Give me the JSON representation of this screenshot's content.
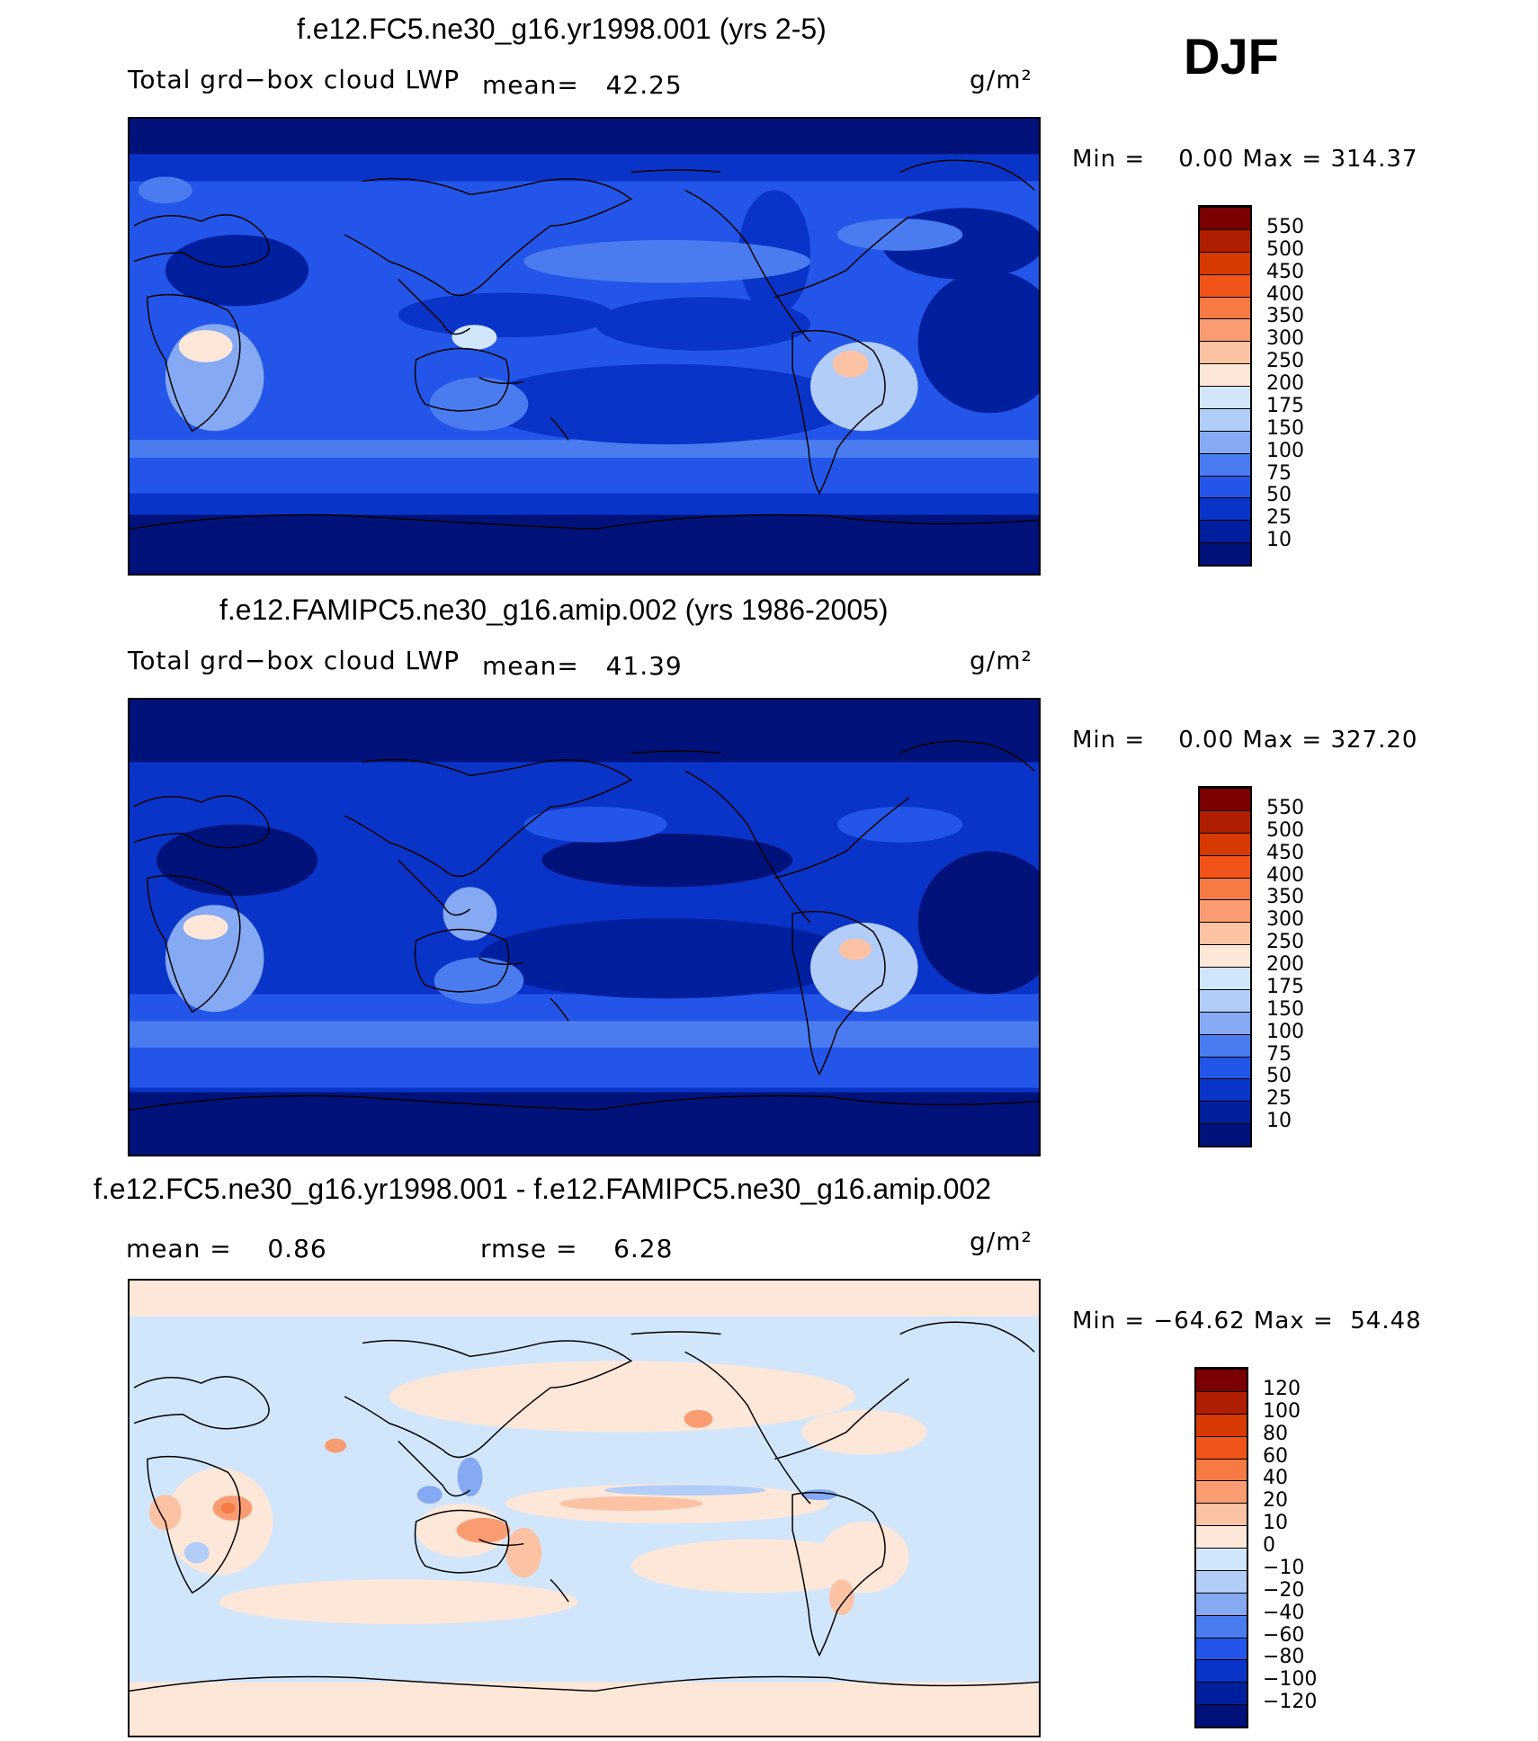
{
  "season": "DJF",
  "panels": [
    {
      "title": "f.e12.FC5.ne30_g16.yr1998.001 (yrs 2-5)",
      "variable": "Total grd−box cloud LWP",
      "stat_text": "mean=   42.25",
      "units": "g/m²",
      "minmax": "Min =    0.00 Max = 314.37",
      "colorbar": {
        "labels": [
          "550",
          "500",
          "450",
          "400",
          "350",
          "300",
          "250",
          "200",
          "175",
          "150",
          "100",
          "75",
          "50",
          "25",
          "10"
        ],
        "colors": [
          "#7a0000",
          "#b01e00",
          "#d63a00",
          "#f05418",
          "#f57a44",
          "#f99c72",
          "#fcc2a4",
          "#fde7d8",
          "#d2e6fb",
          "#b2cdf7",
          "#85a9f3",
          "#4a7cef",
          "#2356e8",
          "#0a34c8",
          "#001f9e",
          "#00127a"
        ]
      }
    },
    {
      "title": "f.e12.FAMIPC5.ne30_g16.amip.002 (yrs 1986-2005)",
      "variable": "Total grd−box cloud LWP",
      "stat_text": "mean=   41.39",
      "units": "g/m²",
      "minmax": "Min =    0.00 Max = 327.20",
      "colorbar": {
        "labels": [
          "550",
          "500",
          "450",
          "400",
          "350",
          "300",
          "250",
          "200",
          "175",
          "150",
          "100",
          "75",
          "50",
          "25",
          "10"
        ],
        "colors": [
          "#7a0000",
          "#b01e00",
          "#d63a00",
          "#f05418",
          "#f57a44",
          "#f99c72",
          "#fcc2a4",
          "#fde7d8",
          "#d2e6fb",
          "#b2cdf7",
          "#85a9f3",
          "#4a7cef",
          "#2356e8",
          "#0a34c8",
          "#001f9e",
          "#00127a"
        ]
      }
    },
    {
      "title": "f.e12.FC5.ne30_g16.yr1998.001 - f.e12.FAMIPC5.ne30_g16.amip.002",
      "mean_text": "mean =    0.86",
      "rmse_text": "rmse =    6.28",
      "units": "g/m²",
      "minmax": "Min = −64.62 Max =  54.48",
      "colorbar": {
        "labels": [
          "120",
          "100",
          "80",
          "60",
          "40",
          "20",
          "10",
          "0",
          "−10",
          "−20",
          "−40",
          "−60",
          "−80",
          "−100",
          "−120"
        ],
        "colors": [
          "#7a0000",
          "#b01e00",
          "#d63a00",
          "#f05418",
          "#f57a44",
          "#f99c72",
          "#fcc2a4",
          "#fde7d8",
          "#d2e6fb",
          "#b2cdf7",
          "#85a9f3",
          "#4a7cef",
          "#2356e8",
          "#0a34c8",
          "#001f9e",
          "#00127a"
        ]
      }
    }
  ]
}
